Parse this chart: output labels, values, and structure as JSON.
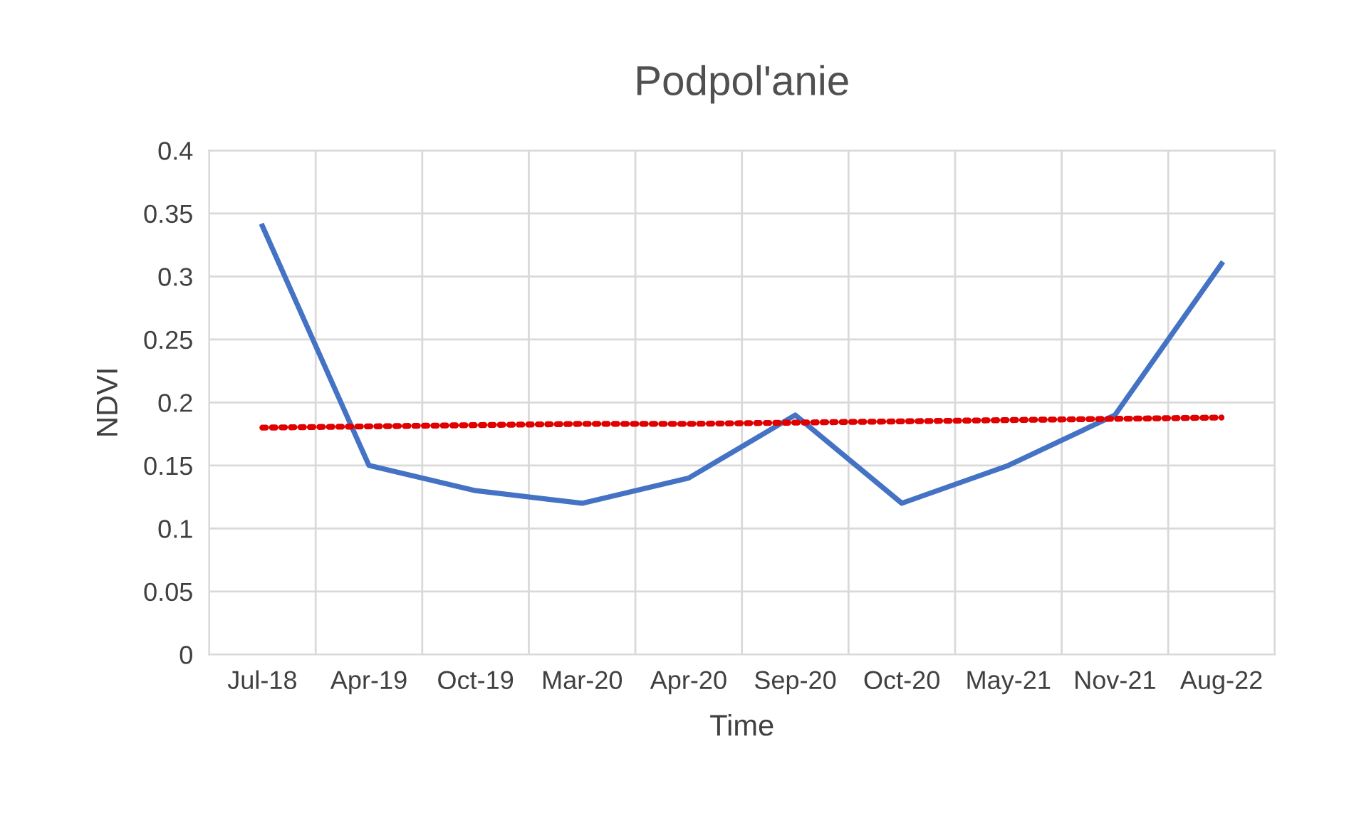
{
  "chart_data": {
    "type": "line",
    "title": "Podpol'anie",
    "xlabel": "Time",
    "ylabel": "NDVI",
    "categories": [
      "Jul-18",
      "Apr-19",
      "Oct-19",
      "Mar-20",
      "Apr-20",
      "Sep-20",
      "Oct-20",
      "May-21",
      "Nov-21",
      "Aug-22"
    ],
    "series": [
      {
        "color": "#4472c4",
        "values": [
          0.34,
          0.15,
          0.13,
          0.12,
          0.14,
          0.19,
          0.12,
          0.15,
          0.19,
          0.31
        ],
        "line_style": "solid"
      },
      {
        "color": "#e00000",
        "values": [
          0.18,
          0.181,
          0.182,
          0.183,
          0.183,
          0.184,
          0.185,
          0.186,
          0.187,
          0.188
        ],
        "line_style": "dotted"
      }
    ],
    "ylim": [
      0,
      0.4
    ],
    "yticks": [
      {
        "value": 0,
        "label": "0"
      },
      0.05,
      0.1,
      0.15,
      0.2,
      0.25,
      0.3,
      0.35,
      0.4
    ],
    "grid": true,
    "marker": "none"
  }
}
